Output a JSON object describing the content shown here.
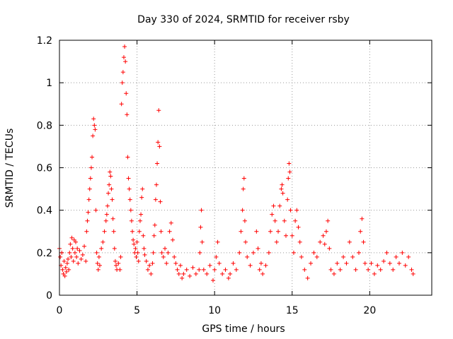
{
  "chart_data": {
    "type": "scatter",
    "title": "Day 330 of 2024, SRMTID for receiver rsby",
    "xlabel": "GPS time / hours",
    "ylabel": "SRMTID / TECUs",
    "xlim": [
      0,
      24
    ],
    "ylim": [
      0,
      1.2
    ],
    "x_ticks": [
      0,
      5,
      10,
      15,
      20
    ],
    "x_tick_labels": [
      "0",
      "5",
      "10",
      "15",
      "20"
    ],
    "y_ticks": [
      0,
      0.2,
      0.4,
      0.6,
      0.8,
      1.0,
      1.2
    ],
    "y_tick_labels": [
      "0",
      "0.2",
      "0.4",
      "0.6",
      "0.8",
      "1",
      "1.2"
    ],
    "grid": true,
    "marker": "+",
    "marker_color": "#ff0000",
    "series": [
      {
        "name": "SRMTID",
        "points": [
          [
            0.0,
            0.22
          ],
          [
            0.05,
            0.18
          ],
          [
            0.1,
            0.14
          ],
          [
            0.15,
            0.2
          ],
          [
            0.2,
            0.12
          ],
          [
            0.25,
            0.1
          ],
          [
            0.3,
            0.16
          ],
          [
            0.35,
            0.09
          ],
          [
            0.4,
            0.13
          ],
          [
            0.45,
            0.11
          ],
          [
            0.5,
            0.15
          ],
          [
            0.55,
            0.17
          ],
          [
            0.6,
            0.12
          ],
          [
            0.65,
            0.2
          ],
          [
            0.7,
            0.24
          ],
          [
            0.75,
            0.18
          ],
          [
            0.8,
            0.27
          ],
          [
            0.85,
            0.22
          ],
          [
            0.9,
            0.16
          ],
          [
            0.95,
            0.26
          ],
          [
            1.0,
            0.2
          ],
          [
            1.05,
            0.25
          ],
          [
            1.1,
            0.18
          ],
          [
            1.15,
            0.22
          ],
          [
            1.2,
            0.15
          ],
          [
            1.3,
            0.21
          ],
          [
            1.4,
            0.17
          ],
          [
            1.5,
            0.19
          ],
          [
            1.6,
            0.23
          ],
          [
            1.7,
            0.16
          ],
          [
            1.75,
            0.3
          ],
          [
            1.8,
            0.35
          ],
          [
            1.85,
            0.39
          ],
          [
            1.9,
            0.45
          ],
          [
            1.95,
            0.5
          ],
          [
            2.0,
            0.55
          ],
          [
            2.05,
            0.6
          ],
          [
            2.1,
            0.65
          ],
          [
            2.15,
            0.75
          ],
          [
            2.2,
            0.83
          ],
          [
            2.25,
            0.8
          ],
          [
            2.3,
            0.78
          ],
          [
            2.35,
            0.4
          ],
          [
            2.4,
            0.2
          ],
          [
            2.45,
            0.15
          ],
          [
            2.5,
            0.12
          ],
          [
            2.55,
            0.18
          ],
          [
            2.6,
            0.14
          ],
          [
            2.7,
            0.22
          ],
          [
            2.8,
            0.25
          ],
          [
            2.9,
            0.3
          ],
          [
            3.0,
            0.35
          ],
          [
            3.05,
            0.38
          ],
          [
            3.1,
            0.42
          ],
          [
            3.15,
            0.48
          ],
          [
            3.2,
            0.52
          ],
          [
            3.25,
            0.58
          ],
          [
            3.3,
            0.56
          ],
          [
            3.35,
            0.5
          ],
          [
            3.4,
            0.45
          ],
          [
            3.45,
            0.36
          ],
          [
            3.5,
            0.3
          ],
          [
            3.55,
            0.22
          ],
          [
            3.6,
            0.16
          ],
          [
            3.65,
            0.14
          ],
          [
            3.7,
            0.12
          ],
          [
            3.8,
            0.15
          ],
          [
            3.9,
            0.12
          ],
          [
            3.95,
            0.18
          ],
          [
            4.0,
            0.9
          ],
          [
            4.05,
            1.0
          ],
          [
            4.1,
            1.05
          ],
          [
            4.15,
            1.12
          ],
          [
            4.2,
            1.17
          ],
          [
            4.25,
            1.1
          ],
          [
            4.3,
            0.95
          ],
          [
            4.35,
            0.85
          ],
          [
            4.4,
            0.65
          ],
          [
            4.45,
            0.55
          ],
          [
            4.5,
            0.5
          ],
          [
            4.55,
            0.45
          ],
          [
            4.6,
            0.4
          ],
          [
            4.65,
            0.35
          ],
          [
            4.7,
            0.3
          ],
          [
            4.75,
            0.26
          ],
          [
            4.8,
            0.24
          ],
          [
            4.85,
            0.2
          ],
          [
            4.9,
            0.22
          ],
          [
            4.95,
            0.18
          ],
          [
            5.0,
            0.25
          ],
          [
            5.05,
            0.2
          ],
          [
            5.1,
            0.16
          ],
          [
            5.15,
            0.3
          ],
          [
            5.2,
            0.35
          ],
          [
            5.25,
            0.38
          ],
          [
            5.3,
            0.46
          ],
          [
            5.35,
            0.5
          ],
          [
            5.4,
            0.28
          ],
          [
            5.45,
            0.22
          ],
          [
            5.5,
            0.19
          ],
          [
            5.6,
            0.16
          ],
          [
            5.7,
            0.12
          ],
          [
            5.8,
            0.14
          ],
          [
            5.9,
            0.1
          ],
          [
            6.0,
            0.15
          ],
          [
            6.05,
            0.2
          ],
          [
            6.1,
            0.28
          ],
          [
            6.15,
            0.33
          ],
          [
            6.2,
            0.45
          ],
          [
            6.25,
            0.52
          ],
          [
            6.3,
            0.62
          ],
          [
            6.35,
            0.72
          ],
          [
            6.4,
            0.87
          ],
          [
            6.45,
            0.7
          ],
          [
            6.5,
            0.44
          ],
          [
            6.55,
            0.3
          ],
          [
            6.6,
            0.2
          ],
          [
            6.7,
            0.18
          ],
          [
            6.8,
            0.22
          ],
          [
            6.9,
            0.15
          ],
          [
            7.0,
            0.2
          ],
          [
            7.1,
            0.3
          ],
          [
            7.2,
            0.34
          ],
          [
            7.3,
            0.26
          ],
          [
            7.4,
            0.18
          ],
          [
            7.5,
            0.15
          ],
          [
            7.6,
            0.12
          ],
          [
            7.7,
            0.1
          ],
          [
            7.8,
            0.14
          ],
          [
            7.9,
            0.08
          ],
          [
            8.0,
            0.1
          ],
          [
            8.2,
            0.12
          ],
          [
            8.4,
            0.09
          ],
          [
            8.6,
            0.13
          ],
          [
            8.8,
            0.1
          ],
          [
            9.0,
            0.12
          ],
          [
            9.05,
            0.2
          ],
          [
            9.1,
            0.32
          ],
          [
            9.15,
            0.4
          ],
          [
            9.2,
            0.25
          ],
          [
            9.3,
            0.12
          ],
          [
            9.5,
            0.1
          ],
          [
            9.7,
            0.14
          ],
          [
            9.9,
            0.07
          ],
          [
            10.0,
            0.12
          ],
          [
            10.1,
            0.18
          ],
          [
            10.2,
            0.25
          ],
          [
            10.3,
            0.15
          ],
          [
            10.5,
            0.1
          ],
          [
            10.7,
            0.12
          ],
          [
            10.9,
            0.08
          ],
          [
            11.0,
            0.1
          ],
          [
            11.2,
            0.15
          ],
          [
            11.4,
            0.12
          ],
          [
            11.6,
            0.2
          ],
          [
            11.7,
            0.3
          ],
          [
            11.8,
            0.4
          ],
          [
            11.85,
            0.5
          ],
          [
            11.9,
            0.55
          ],
          [
            11.95,
            0.35
          ],
          [
            12.0,
            0.25
          ],
          [
            12.1,
            0.18
          ],
          [
            12.3,
            0.14
          ],
          [
            12.5,
            0.2
          ],
          [
            12.7,
            0.3
          ],
          [
            12.8,
            0.22
          ],
          [
            12.9,
            0.12
          ],
          [
            13.0,
            0.15
          ],
          [
            13.1,
            0.1
          ],
          [
            13.3,
            0.14
          ],
          [
            13.5,
            0.2
          ],
          [
            13.6,
            0.3
          ],
          [
            13.7,
            0.38
          ],
          [
            13.8,
            0.42
          ],
          [
            13.9,
            0.35
          ],
          [
            14.0,
            0.25
          ],
          [
            14.1,
            0.3
          ],
          [
            14.2,
            0.42
          ],
          [
            14.3,
            0.5
          ],
          [
            14.35,
            0.52
          ],
          [
            14.4,
            0.48
          ],
          [
            14.5,
            0.35
          ],
          [
            14.6,
            0.28
          ],
          [
            14.7,
            0.45
          ],
          [
            14.75,
            0.55
          ],
          [
            14.8,
            0.62
          ],
          [
            14.85,
            0.58
          ],
          [
            14.9,
            0.4
          ],
          [
            15.0,
            0.28
          ],
          [
            15.1,
            0.2
          ],
          [
            15.2,
            0.35
          ],
          [
            15.3,
            0.4
          ],
          [
            15.4,
            0.32
          ],
          [
            15.5,
            0.25
          ],
          [
            15.6,
            0.18
          ],
          [
            15.8,
            0.12
          ],
          [
            16.0,
            0.08
          ],
          [
            16.2,
            0.15
          ],
          [
            16.4,
            0.2
          ],
          [
            16.6,
            0.18
          ],
          [
            16.8,
            0.25
          ],
          [
            17.0,
            0.28
          ],
          [
            17.1,
            0.24
          ],
          [
            17.2,
            0.3
          ],
          [
            17.3,
            0.35
          ],
          [
            17.4,
            0.22
          ],
          [
            17.5,
            0.12
          ],
          [
            17.7,
            0.1
          ],
          [
            17.9,
            0.15
          ],
          [
            18.1,
            0.12
          ],
          [
            18.3,
            0.18
          ],
          [
            18.5,
            0.15
          ],
          [
            18.7,
            0.25
          ],
          [
            18.9,
            0.18
          ],
          [
            19.1,
            0.12
          ],
          [
            19.3,
            0.2
          ],
          [
            19.4,
            0.3
          ],
          [
            19.5,
            0.36
          ],
          [
            19.6,
            0.25
          ],
          [
            19.7,
            0.15
          ],
          [
            19.9,
            0.12
          ],
          [
            20.1,
            0.15
          ],
          [
            20.3,
            0.1
          ],
          [
            20.5,
            0.14
          ],
          [
            20.7,
            0.12
          ],
          [
            20.9,
            0.16
          ],
          [
            21.1,
            0.2
          ],
          [
            21.3,
            0.15
          ],
          [
            21.5,
            0.12
          ],
          [
            21.7,
            0.18
          ],
          [
            21.9,
            0.15
          ],
          [
            22.1,
            0.2
          ],
          [
            22.3,
            0.14
          ],
          [
            22.5,
            0.18
          ],
          [
            22.7,
            0.12
          ],
          [
            22.8,
            0.1
          ]
        ]
      }
    ]
  }
}
